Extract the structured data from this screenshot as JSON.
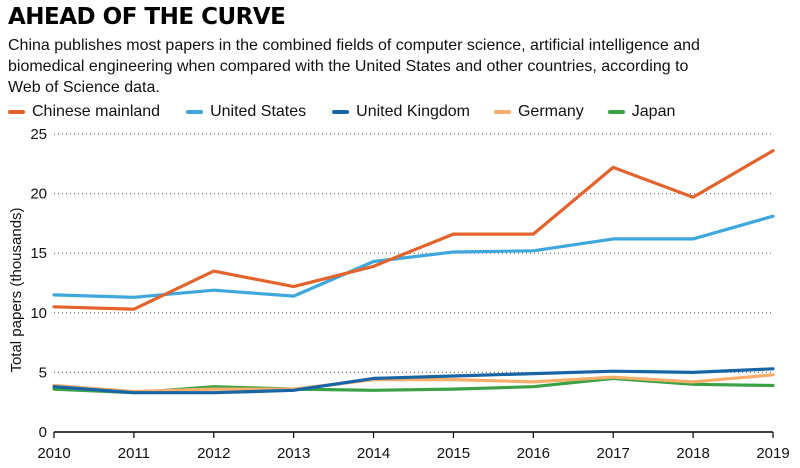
{
  "header": {
    "title": "AHEAD OF THE CURVE",
    "subtitle": "China publishes most papers in the combined fields of computer science, artificial intelligence and biomedical engineering when compared with the United States and other countries, according to Web of Science data."
  },
  "chart_data": {
    "type": "line",
    "x": [
      2010,
      2011,
      2012,
      2013,
      2014,
      2015,
      2016,
      2017,
      2018,
      2019
    ],
    "ylabel": "Total papers (thousands)",
    "xlabel": "",
    "ylim": [
      0,
      25
    ],
    "yticks": [
      0,
      5,
      10,
      15,
      20,
      25
    ],
    "grid": "horizontal dotted",
    "legend_position": "top",
    "series": [
      {
        "name": "Chinese mainland",
        "color": "#e3632d",
        "values": [
          10.5,
          10.3,
          13.5,
          12.2,
          13.9,
          16.6,
          16.6,
          22.2,
          19.7,
          23.6
        ]
      },
      {
        "name": "United States",
        "color": "#3ea7dd",
        "values": [
          11.5,
          11.3,
          11.9,
          11.4,
          14.3,
          15.1,
          15.2,
          16.2,
          16.2,
          18.1
        ]
      },
      {
        "name": "United Kingdom",
        "color": "#1764a6",
        "values": [
          3.8,
          3.3,
          3.3,
          3.5,
          4.5,
          4.7,
          4.9,
          5.1,
          5.0,
          5.3
        ]
      },
      {
        "name": "Germany",
        "color": "#f6ae6a",
        "values": [
          3.9,
          3.4,
          3.6,
          3.6,
          4.4,
          4.4,
          4.2,
          4.6,
          4.2,
          4.8
        ]
      },
      {
        "name": "Japan",
        "color": "#3aa245",
        "values": [
          3.6,
          3.3,
          3.8,
          3.6,
          3.5,
          3.6,
          3.8,
          4.5,
          4.0,
          3.9
        ]
      }
    ]
  }
}
